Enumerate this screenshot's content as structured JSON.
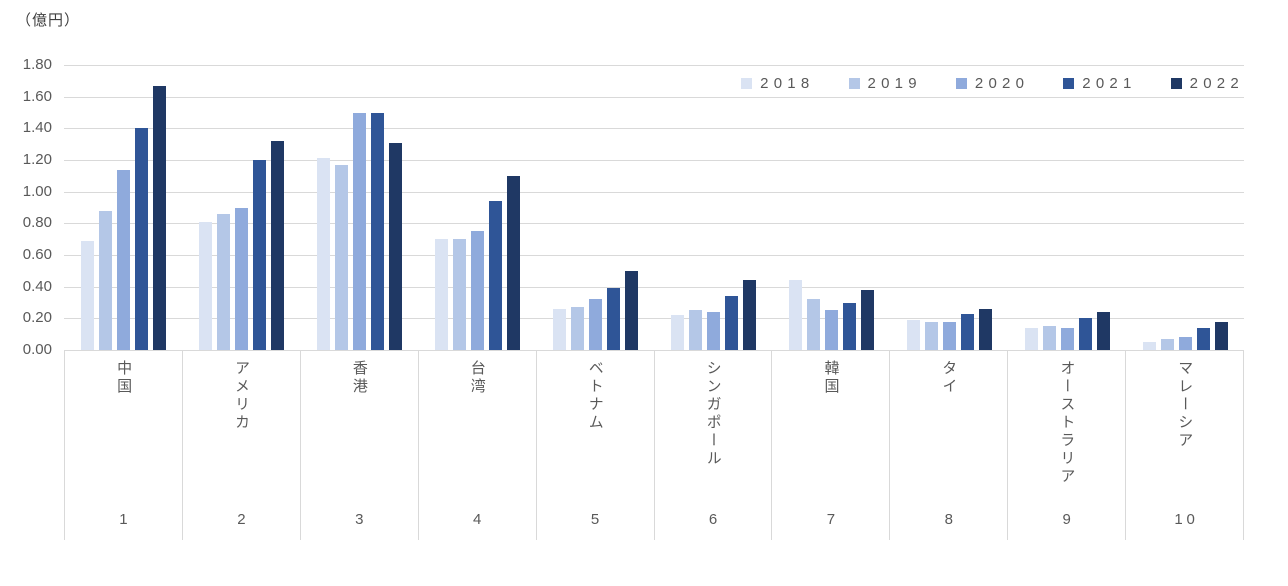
{
  "unit_label": "（億円）",
  "chart_data": {
    "type": "bar",
    "title": "",
    "xlabel": "",
    "ylabel": "（億円）",
    "unit": "億円",
    "ylim": [
      0,
      1.8
    ],
    "ytick_step": 0.2,
    "yticks": [
      "1.80",
      "1.60",
      "1.40",
      "1.20",
      "1.00",
      "0.80",
      "0.60",
      "0.40",
      "0.20",
      "0.00"
    ],
    "grid": "horizontal",
    "legend_position": "top-right",
    "categories": [
      {
        "name": "中国",
        "rank": "1"
      },
      {
        "name": "アメリカ",
        "rank": "2"
      },
      {
        "name": "香港",
        "rank": "3"
      },
      {
        "name": "台湾",
        "rank": "4"
      },
      {
        "name": "ベトナム",
        "rank": "5"
      },
      {
        "name": "シンガポール",
        "rank": "6"
      },
      {
        "name": "韓国",
        "rank": "7"
      },
      {
        "name": "タイ",
        "rank": "8"
      },
      {
        "name": "オーストラリア",
        "rank": "9"
      },
      {
        "name": "マレーシア",
        "rank": "10"
      }
    ],
    "series": [
      {
        "name": "2018",
        "color": "#DAE3F3",
        "values": [
          0.69,
          0.81,
          1.21,
          0.7,
          0.26,
          0.22,
          0.44,
          0.19,
          0.14,
          0.05
        ]
      },
      {
        "name": "2019",
        "color": "#B4C7E7",
        "values": [
          0.88,
          0.86,
          1.17,
          0.7,
          0.27,
          0.25,
          0.32,
          0.18,
          0.15,
          0.07
        ]
      },
      {
        "name": "2020",
        "color": "#8FAADC",
        "values": [
          1.14,
          0.9,
          1.5,
          0.75,
          0.32,
          0.24,
          0.25,
          0.18,
          0.14,
          0.08
        ]
      },
      {
        "name": "2021",
        "color": "#2F5597",
        "values": [
          1.4,
          1.2,
          1.5,
          0.94,
          0.39,
          0.34,
          0.3,
          0.23,
          0.2,
          0.14
        ]
      },
      {
        "name": "2022",
        "color": "#1F3864",
        "values": [
          1.67,
          1.32,
          1.31,
          1.1,
          0.5,
          0.44,
          0.38,
          0.26,
          0.24,
          0.18
        ]
      }
    ]
  }
}
